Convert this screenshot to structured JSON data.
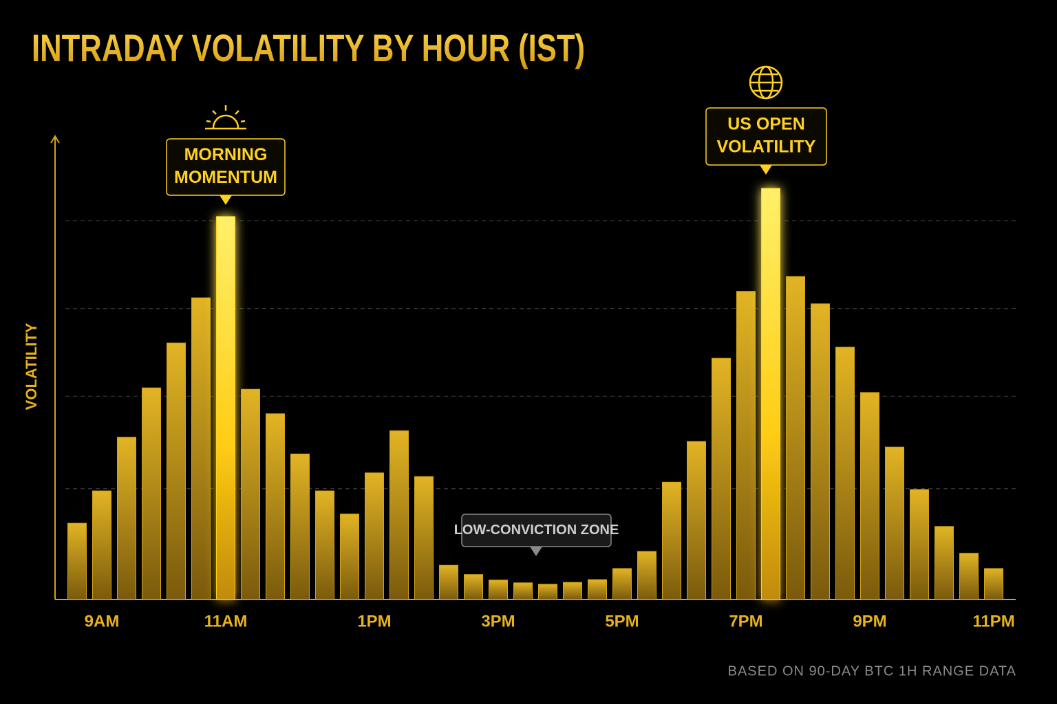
{
  "chart_data": {
    "type": "bar",
    "title": "INTRADAY VOLATILITY BY HOUR (IST)",
    "y_label": "VOLATILITY",
    "footnote": "BASED ON 90-DAY BTC 1H RANGE DATA",
    "categories": [
      null,
      "9AM",
      null,
      null,
      null,
      null,
      "11AM",
      null,
      null,
      null,
      null,
      null,
      "1PM",
      null,
      null,
      null,
      null,
      "3PM",
      null,
      null,
      null,
      null,
      "5PM",
      null,
      null,
      null,
      null,
      "7PM",
      null,
      null,
      null,
      null,
      "9PM",
      null,
      null,
      null,
      null,
      "11PM"
    ],
    "values": [
      16.5,
      23.5,
      35.1,
      45.8,
      55.5,
      65.3,
      82.9,
      45.5,
      40.2,
      31.5,
      23.5,
      18.5,
      27.4,
      36.5,
      26.6,
      7.4,
      5.4,
      4.2,
      3.6,
      3.3,
      3.7,
      4.3,
      6.7,
      10.4,
      25.4,
      34.2,
      52.2,
      66.7,
      89.0,
      69.9,
      64.0,
      54.6,
      44.8,
      33.0,
      23.8,
      15.8,
      10.0,
      6.7
    ],
    "color": "#d4a417",
    "highlight_color": "#ffd21f",
    "ylim": [
      0,
      100
    ],
    "gridlines": [
      24,
      44,
      63,
      82
    ],
    "annotations": [
      {
        "lines": [
          "MORNING",
          "MOMENTUM"
        ]
      },
      {
        "lines": [
          "US OPEN",
          "VOLATILITY"
        ]
      },
      {
        "lines": [
          "LOW-CONVICTION ZONE"
        ]
      }
    ]
  }
}
